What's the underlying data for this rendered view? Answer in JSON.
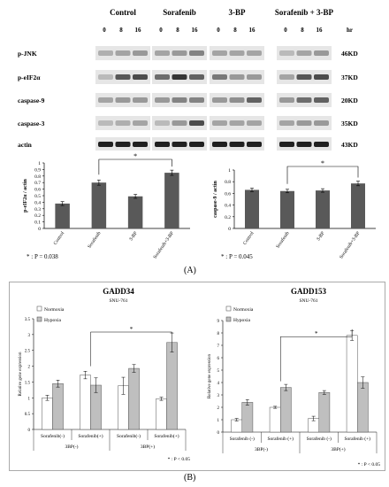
{
  "figure": {
    "panel_a_label": "(A)",
    "panel_b_label": "(B)"
  },
  "western_blot": {
    "groups": [
      "Control",
      "Sorafenib",
      "3-BP",
      "Sorafenib + 3-BP"
    ],
    "timepoints": [
      "0",
      "8",
      "16"
    ],
    "time_unit": "hr",
    "rows": [
      {
        "protein": "p-JNK",
        "size": "46KD",
        "intensity": [
          [
            0.25,
            0.3,
            0.35
          ],
          [
            0.3,
            0.35,
            0.45
          ],
          [
            0.3,
            0.3,
            0.3
          ],
          [
            0.2,
            0.3,
            0.35
          ]
        ]
      },
      {
        "protein": "p-eIF2α",
        "size": "37KD",
        "intensity": [
          [
            0.2,
            0.65,
            0.7
          ],
          [
            0.55,
            0.8,
            0.6
          ],
          [
            0.5,
            0.35,
            0.35
          ],
          [
            0.3,
            0.65,
            0.7
          ]
        ]
      },
      {
        "protein": "caspase-9",
        "size": "20KD",
        "intensity": [
          [
            0.3,
            0.35,
            0.35
          ],
          [
            0.35,
            0.45,
            0.45
          ],
          [
            0.35,
            0.4,
            0.6
          ],
          [
            0.35,
            0.55,
            0.6
          ]
        ]
      },
      {
        "protein": "caspase-3",
        "size": "35KD",
        "intensity": [
          [
            0.2,
            0.25,
            0.3
          ],
          [
            0.2,
            0.35,
            0.7
          ],
          [
            0.3,
            0.3,
            0.3
          ],
          [
            0.3,
            0.35,
            0.35
          ]
        ]
      },
      {
        "protein": "actin",
        "size": "43KD",
        "intensity": [
          [
            0.9,
            0.9,
            0.9
          ],
          [
            0.9,
            0.9,
            0.9
          ],
          [
            0.9,
            0.9,
            0.9
          ],
          [
            0.9,
            0.9,
            0.9
          ]
        ]
      }
    ]
  },
  "p_values": {
    "a_left": "* : P = 0.038",
    "a_right": "* : P = 0.045",
    "b_left": "* : P < 0.05",
    "b_right": "* : P < 0.05"
  },
  "chart_data": [
    {
      "type": "bar",
      "categories": [
        "Control",
        "Sorafenib",
        "3-BP",
        "Sorafenib+3-BP"
      ],
      "values": [
        0.38,
        0.7,
        0.49,
        0.85
      ],
      "errors": [
        0.03,
        0.04,
        0.03,
        0.04
      ],
      "ylabel": "p-eIF2α / actin",
      "ylim": [
        0,
        1
      ],
      "yticks": [
        "0",
        "0.1",
        "0.2",
        "0.3",
        "0.4",
        "0.5",
        "0.6",
        "0.7",
        "0.8",
        "0.9",
        "1"
      ],
      "significance": "*",
      "color": "#595959"
    },
    {
      "type": "bar",
      "categories": [
        "Control",
        "Sorafenib",
        "3-BP",
        "Sorafenib+3-BP"
      ],
      "values": [
        0.66,
        0.64,
        0.65,
        0.77
      ],
      "errors": [
        0.03,
        0.03,
        0.03,
        0.04
      ],
      "ylabel": "caspase-9 / actin",
      "ylim": [
        0,
        1
      ],
      "yticks": [
        "0",
        "0.2",
        "0.4",
        "0.6",
        "0.8",
        "1"
      ],
      "significance": "*",
      "color": "#595959"
    },
    {
      "type": "bar",
      "title": "GADD34",
      "subtitle": "SNU-761",
      "ylabel": "Relative gene expression",
      "ylim": [
        0,
        3.5
      ],
      "yticks": [
        "0",
        "0.5",
        "1",
        "1.5",
        "2",
        "2.5",
        "3",
        "3.5"
      ],
      "categories": [
        "Sorafenib(-)",
        "Sorafenib(+)",
        "Sorafenib(-)",
        "Sorafenib(+)"
      ],
      "groups": [
        "3BP(-)",
        "3BP(+)"
      ],
      "series": [
        {
          "name": "Normoxia",
          "values": [
            1.0,
            1.72,
            1.38,
            0.97
          ],
          "errors": [
            0.08,
            0.12,
            0.27,
            0.05
          ],
          "color": "#ffffff"
        },
        {
          "name": "Hypoxia",
          "values": [
            1.45,
            1.4,
            1.93,
            2.75
          ],
          "errors": [
            0.11,
            0.23,
            0.12,
            0.3
          ],
          "color": "#bfbfbf"
        }
      ],
      "significance": "*"
    },
    {
      "type": "bar",
      "title": "GADD153",
      "subtitle": "SNU-761",
      "ylabel": "Relative gene expression",
      "ylim": [
        0,
        9
      ],
      "yticks": [
        "0",
        "1",
        "2",
        "3",
        "4",
        "5",
        "6",
        "7",
        "8",
        "9"
      ],
      "categories": [
        "Sorafenib (-)",
        "Sorafenib (+)",
        "Sorafenib (-)",
        "Sorafenib (+)"
      ],
      "groups": [
        "3BP(-)",
        "3BP(+)"
      ],
      "series": [
        {
          "name": "Normoxia",
          "values": [
            1.0,
            2.0,
            1.1,
            7.8
          ],
          "errors": [
            0.1,
            0.08,
            0.18,
            0.4
          ],
          "color": "#ffffff"
        },
        {
          "name": "Hypoxia",
          "values": [
            2.4,
            3.6,
            3.2,
            4.0
          ],
          "errors": [
            0.22,
            0.25,
            0.15,
            0.45
          ],
          "color": "#bfbfbf"
        }
      ],
      "significance": "*"
    }
  ]
}
